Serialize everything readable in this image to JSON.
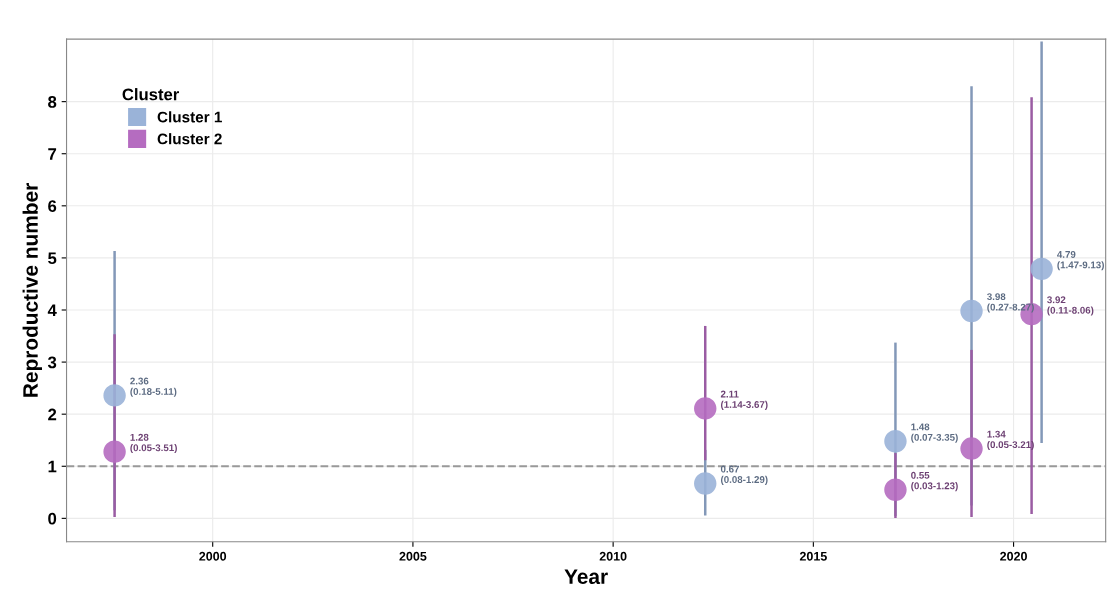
{
  "chart_data": {
    "type": "scatter",
    "xlabel": "Year",
    "ylabel": "Reproductive number",
    "legend_title": "Cluster",
    "legend": "top left",
    "grid": true,
    "marker": "circle",
    "xlim": [
      1996.35,
      2022.3
    ],
    "xticks": [
      2000,
      2005,
      2010,
      2015,
      2020
    ],
    "ylim": [
      -0.45,
      9.2
    ],
    "yticks": [
      0,
      1,
      2,
      3,
      4,
      5,
      6,
      7,
      8
    ],
    "ref_lines": [
      {
        "axis": "y",
        "value": 1,
        "label": null,
        "color": "#999999",
        "line_style": "dashed"
      }
    ],
    "series": [
      {
        "name": "Cluster 1",
        "color": "#9ab3d8",
        "x": [
          1997.55,
          2012.3,
          2017.05,
          2018.95,
          2020.7
        ],
        "values": [
          2.36,
          0.67,
          1.48,
          3.98,
          4.79
        ],
        "errors": [
          [
            0.18,
            5.11
          ],
          [
            0.08,
            1.29
          ],
          [
            0.07,
            3.35
          ],
          [
            0.27,
            8.27
          ],
          [
            1.47,
            9.13
          ]
        ],
        "value_labels": [
          "2.36\n(0.18-5.11)",
          "0.67\n(0.08-1.29)",
          "1.48\n(0.07-3.35)",
          "3.98\n(0.27-8.27)",
          "4.79\n(1.47-9.13)"
        ]
      },
      {
        "name": "Cluster 2",
        "color": "#b56cc0",
        "x": [
          1997.55,
          2012.3,
          2017.05,
          2018.95,
          2020.45
        ],
        "values": [
          1.28,
          2.11,
          0.55,
          1.34,
          3.92
        ],
        "errors": [
          [
            0.05,
            3.51
          ],
          [
            1.14,
            3.67
          ],
          [
            0.03,
            1.23
          ],
          [
            0.05,
            3.21
          ],
          [
            0.11,
            8.06
          ]
        ],
        "value_labels": [
          "1.28\n(0.05-3.51)",
          "2.11\n(1.14-3.67)",
          "0.55\n(0.03-1.23)",
          "1.34\n(0.05-3.21)",
          "3.92\n(0.11-8.06)"
        ]
      }
    ]
  }
}
